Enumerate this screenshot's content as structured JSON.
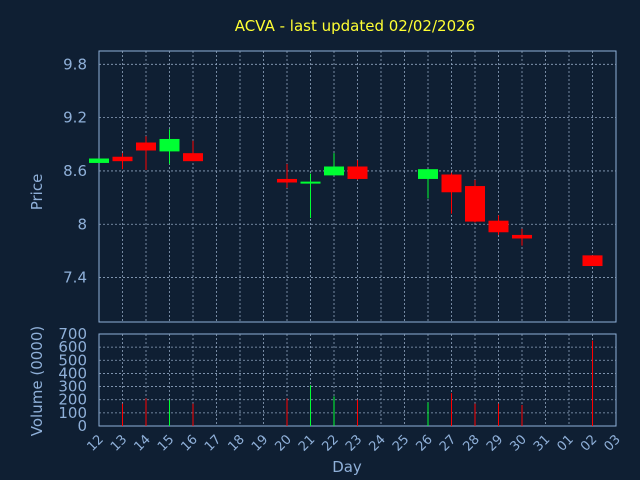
{
  "chart_data": {
    "type": "candlestick",
    "title": "ACVA - last updated 02/02/2026",
    "price_panel": {
      "ylabel": "Price",
      "yticks": [
        9.8,
        9.2,
        8.6,
        8,
        7.4
      ],
      "ylim": [
        6.9,
        9.95
      ]
    },
    "volume_panel": {
      "ylabel": "Volume (0000)",
      "yticks": [
        0,
        100,
        200,
        300,
        400,
        500,
        600,
        700
      ],
      "ylim": [
        0,
        700
      ]
    },
    "xlabel": "Day",
    "x_tick_labels": [
      "12",
      "13",
      "14",
      "15",
      "16",
      "17",
      "18",
      "19",
      "20",
      "21",
      "22",
      "23",
      "24",
      "25",
      "26",
      "27",
      "28",
      "29",
      "30",
      "31",
      "01",
      "02",
      "03"
    ],
    "candles": [
      {
        "day": "12",
        "open": 8.69,
        "high": 8.74,
        "low": 8.69,
        "close": 8.74,
        "volume": 0
      },
      {
        "day": "13",
        "open": 8.76,
        "high": 8.8,
        "low": 8.62,
        "close": 8.71,
        "volume": 170
      },
      {
        "day": "14",
        "open": 8.92,
        "high": 8.99,
        "low": 8.61,
        "close": 8.83,
        "volume": 210
      },
      {
        "day": "15",
        "open": 8.82,
        "high": 9.07,
        "low": 8.68,
        "close": 8.96,
        "volume": 200
      },
      {
        "day": "16",
        "open": 8.8,
        "high": 8.94,
        "low": 8.71,
        "close": 8.71,
        "volume": 170
      },
      {
        "day": "20",
        "open": 8.51,
        "high": 8.68,
        "low": 8.41,
        "close": 8.47,
        "volume": 210
      },
      {
        "day": "21",
        "open": 8.47,
        "high": 8.57,
        "low": 8.07,
        "close": 8.48,
        "volume": 310
      },
      {
        "day": "22",
        "open": 8.55,
        "high": 8.8,
        "low": 8.55,
        "close": 8.65,
        "volume": 225
      },
      {
        "day": "23",
        "open": 8.65,
        "high": 8.72,
        "low": 8.5,
        "close": 8.51,
        "volume": 200
      },
      {
        "day": "26",
        "open": 8.51,
        "high": 8.62,
        "low": 8.29,
        "close": 8.62,
        "volume": 180
      },
      {
        "day": "27",
        "open": 8.56,
        "high": 8.58,
        "low": 8.12,
        "close": 8.36,
        "volume": 250
      },
      {
        "day": "28",
        "open": 8.43,
        "high": 8.5,
        "low": 8.02,
        "close": 8.03,
        "volume": 170
      },
      {
        "day": "29",
        "open": 8.04,
        "high": 8.1,
        "low": 7.88,
        "close": 7.91,
        "volume": 170
      },
      {
        "day": "30",
        "open": 7.88,
        "high": 7.95,
        "low": 7.76,
        "close": 7.84,
        "volume": 160
      },
      {
        "day": "02",
        "open": 7.65,
        "high": 7.65,
        "low": 7.53,
        "close": 7.53,
        "volume": 650
      }
    ],
    "colors": {
      "background": "#0f1f33",
      "plot_border": "#8fb0d9",
      "grid": "#8fa4bf",
      "up": "#00ff33",
      "down": "#ff0000",
      "title": "#ffff33",
      "text": "#8fb0d9"
    },
    "grid": true
  }
}
